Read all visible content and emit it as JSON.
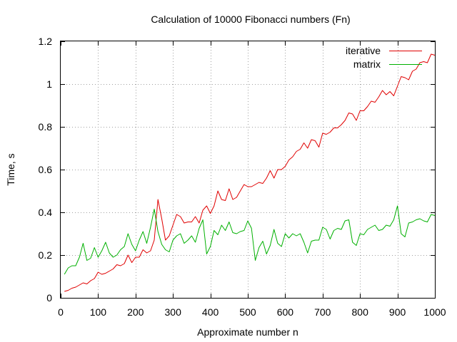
{
  "chart_data": {
    "type": "line",
    "title": "Calculation of 10000 Fibonacci numbers (Fn)",
    "xlabel": "Approximate number n",
    "ylabel": "Time, s",
    "xlim": [
      0,
      1000
    ],
    "ylim": [
      0,
      1.2
    ],
    "xticks": [
      0,
      100,
      200,
      300,
      400,
      500,
      600,
      700,
      800,
      900,
      1000
    ],
    "xtick_labels": [
      "0",
      "100",
      "200",
      "300",
      "400",
      "500",
      "600",
      "700",
      "800",
      "900",
      "1000"
    ],
    "yticks": [
      0,
      0.2,
      0.4,
      0.6,
      0.8,
      1.0,
      1.2
    ],
    "ytick_labels": [
      "0",
      "0.2",
      "0.4",
      "0.6",
      "0.8",
      "1",
      "1.2"
    ],
    "grid": true,
    "legend_position": "top-right",
    "x": [
      10,
      20,
      30,
      40,
      50,
      60,
      70,
      80,
      90,
      100,
      110,
      120,
      130,
      140,
      150,
      160,
      170,
      180,
      190,
      200,
      210,
      220,
      230,
      240,
      250,
      260,
      270,
      280,
      290,
      300,
      310,
      320,
      330,
      340,
      350,
      360,
      370,
      380,
      390,
      400,
      410,
      420,
      430,
      440,
      450,
      460,
      470,
      480,
      490,
      500,
      510,
      520,
      530,
      540,
      550,
      560,
      570,
      580,
      590,
      600,
      610,
      620,
      630,
      640,
      650,
      660,
      670,
      680,
      690,
      700,
      710,
      720,
      730,
      740,
      750,
      760,
      770,
      780,
      790,
      800,
      810,
      820,
      830,
      840,
      850,
      860,
      870,
      880,
      890,
      900,
      910,
      920,
      930,
      940,
      950,
      960,
      970,
      980,
      990,
      1000
    ],
    "series": [
      {
        "name": "iterative",
        "color": "#e00000",
        "values": [
          0.03,
          0.035,
          0.045,
          0.05,
          0.06,
          0.07,
          0.065,
          0.08,
          0.09,
          0.12,
          0.11,
          0.115,
          0.125,
          0.135,
          0.155,
          0.15,
          0.16,
          0.2,
          0.165,
          0.19,
          0.19,
          0.225,
          0.21,
          0.22,
          0.27,
          0.46,
          0.37,
          0.27,
          0.29,
          0.34,
          0.39,
          0.38,
          0.35,
          0.355,
          0.355,
          0.38,
          0.35,
          0.41,
          0.43,
          0.395,
          0.43,
          0.5,
          0.46,
          0.455,
          0.51,
          0.46,
          0.47,
          0.5,
          0.53,
          0.52,
          0.52,
          0.53,
          0.54,
          0.535,
          0.56,
          0.595,
          0.56,
          0.6,
          0.6,
          0.615,
          0.645,
          0.66,
          0.685,
          0.695,
          0.725,
          0.7,
          0.74,
          0.735,
          0.705,
          0.77,
          0.765,
          0.775,
          0.795,
          0.795,
          0.81,
          0.83,
          0.865,
          0.86,
          0.83,
          0.875,
          0.875,
          0.895,
          0.92,
          0.915,
          0.94,
          0.97,
          0.95,
          0.965,
          0.945,
          0.99,
          1.035,
          1.03,
          1.02,
          1.06,
          1.07,
          1.1,
          1.105,
          1.1,
          1.14,
          1.135
        ]
      },
      {
        "name": "matrix",
        "color": "#00b000",
        "values": [
          0.11,
          0.14,
          0.15,
          0.15,
          0.19,
          0.255,
          0.175,
          0.185,
          0.235,
          0.19,
          0.22,
          0.26,
          0.21,
          0.19,
          0.2,
          0.225,
          0.24,
          0.3,
          0.25,
          0.22,
          0.27,
          0.31,
          0.255,
          0.33,
          0.415,
          0.31,
          0.25,
          0.225,
          0.215,
          0.27,
          0.29,
          0.3,
          0.255,
          0.27,
          0.29,
          0.26,
          0.325,
          0.365,
          0.205,
          0.24,
          0.315,
          0.295,
          0.34,
          0.315,
          0.355,
          0.305,
          0.3,
          0.31,
          0.315,
          0.36,
          0.325,
          0.175,
          0.235,
          0.265,
          0.205,
          0.245,
          0.32,
          0.255,
          0.24,
          0.3,
          0.28,
          0.3,
          0.29,
          0.3,
          0.26,
          0.21,
          0.265,
          0.27,
          0.27,
          0.33,
          0.32,
          0.275,
          0.315,
          0.325,
          0.32,
          0.36,
          0.365,
          0.26,
          0.245,
          0.3,
          0.295,
          0.32,
          0.33,
          0.34,
          0.315,
          0.32,
          0.34,
          0.335,
          0.365,
          0.43,
          0.3,
          0.285,
          0.35,
          0.355,
          0.365,
          0.37,
          0.36,
          0.355,
          0.39,
          0.385
        ]
      }
    ]
  }
}
